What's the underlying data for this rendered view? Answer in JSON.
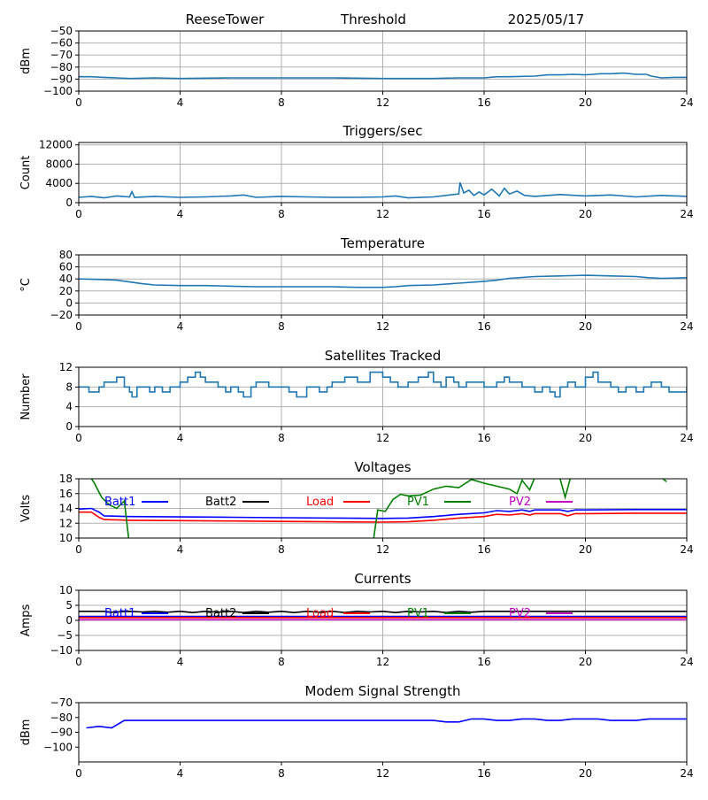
{
  "header": {
    "station": "ReeseTower",
    "label": "Threshold",
    "date": "2025/05/17"
  },
  "colors": {
    "series_default": "#1f77b4",
    "grid": "#b0b0b0"
  },
  "chart_data": [
    {
      "id": "threshold",
      "type": "line",
      "title": "",
      "xlabel": "",
      "ylabel": "dBm",
      "xlim": [
        0,
        24
      ],
      "ylim": [
        -100,
        -50
      ],
      "xticks": [
        0,
        4,
        8,
        12,
        16,
        20,
        24
      ],
      "yticks": [
        -100,
        -90,
        -80,
        -70,
        -60,
        -50
      ],
      "grid": true,
      "series": [
        {
          "color": "#1f77b4",
          "x": [
            0,
            0.5,
            1,
            1.5,
            2,
            3,
            4,
            6,
            8,
            10,
            12,
            14,
            15,
            16,
            16.5,
            17,
            18,
            18.5,
            19,
            19.5,
            20,
            20.3,
            20.6,
            21,
            21.5,
            22,
            22.4,
            22.6,
            23,
            23.5,
            24
          ],
          "y": [
            -88,
            -88,
            -88.5,
            -89,
            -89.5,
            -89,
            -89.5,
            -89,
            -89,
            -89,
            -89.5,
            -89.5,
            -89,
            -89,
            -88,
            -88,
            -87.5,
            -86.5,
            -86.5,
            -86,
            -86.5,
            -86,
            -85.5,
            -85.5,
            -85,
            -86,
            -86,
            -87.5,
            -89,
            -88.5,
            -88.5
          ]
        }
      ]
    },
    {
      "id": "triggers",
      "type": "line",
      "title": "Triggers/sec",
      "xlabel": "",
      "ylabel": "Count",
      "xlim": [
        0,
        24
      ],
      "ylim": [
        0,
        12500
      ],
      "xticks": [
        0,
        4,
        8,
        12,
        16,
        20,
        24
      ],
      "yticks": [
        0,
        4000,
        8000,
        12000
      ],
      "grid": true,
      "series": [
        {
          "color": "#1f77b4",
          "x": [
            0,
            0.5,
            1,
            1.5,
            2,
            2.1,
            2.2,
            3,
            4,
            5,
            6,
            6.5,
            7,
            8,
            9,
            10,
            11,
            12,
            12.5,
            13,
            14,
            14.5,
            15,
            15.05,
            15.2,
            15.4,
            15.6,
            15.8,
            16,
            16.3,
            16.6,
            16.8,
            17,
            17.3,
            17.6,
            18,
            19,
            20,
            21,
            22,
            23,
            24
          ],
          "y": [
            1100,
            1300,
            1000,
            1400,
            1200,
            2300,
            1100,
            1300,
            1100,
            1200,
            1400,
            1600,
            1100,
            1300,
            1200,
            1100,
            1100,
            1200,
            1400,
            1000,
            1200,
            1500,
            1800,
            4200,
            2000,
            2600,
            1500,
            2200,
            1600,
            2800,
            1400,
            3000,
            1800,
            2400,
            1500,
            1300,
            1700,
            1400,
            1600,
            1200,
            1500,
            1300
          ]
        }
      ]
    },
    {
      "id": "temperature",
      "type": "line",
      "title": "Temperature",
      "xlabel": "",
      "ylabel": "°C",
      "xlim": [
        0,
        24
      ],
      "ylim": [
        -20,
        80
      ],
      "xticks": [
        0,
        4,
        8,
        12,
        16,
        20,
        24
      ],
      "yticks": [
        -20,
        0,
        20,
        40,
        60,
        80
      ],
      "grid": true,
      "series": [
        {
          "color": "#1f77b4",
          "x": [
            0,
            1,
            1.5,
            2,
            2.5,
            3,
            4,
            5,
            6,
            7,
            8,
            9,
            10,
            11,
            12,
            12.5,
            13,
            14,
            15,
            16,
            16.5,
            17,
            18,
            19,
            20,
            21,
            22,
            22.5,
            23,
            24
          ],
          "y": [
            40,
            39,
            38,
            35,
            32,
            30,
            29,
            29,
            28,
            27,
            27,
            27,
            27,
            26,
            26,
            27,
            29,
            30,
            33,
            36,
            38,
            41,
            44,
            45,
            46,
            45,
            44,
            42,
            41,
            42
          ]
        }
      ]
    },
    {
      "id": "satellites",
      "type": "line",
      "title": "Satellites Tracked",
      "xlabel": "",
      "ylabel": "Number",
      "xlim": [
        0,
        24
      ],
      "ylim": [
        0,
        12
      ],
      "xticks": [
        0,
        4,
        8,
        12,
        16,
        20,
        24
      ],
      "yticks": [
        0,
        4,
        8,
        12
      ],
      "grid": true,
      "series": [
        {
          "color": "#1f77b4",
          "step": true,
          "x": [
            0,
            0.4,
            0.8,
            1,
            1.5,
            1.8,
            2,
            2.1,
            2.3,
            2.8,
            3,
            3.3,
            3.6,
            4,
            4.3,
            4.6,
            4.8,
            5,
            5.5,
            5.8,
            6,
            6.3,
            6.5,
            6.8,
            7,
            7.5,
            8,
            8.3,
            8.6,
            9,
            9.5,
            9.8,
            10,
            10.5,
            11,
            11.5,
            12,
            12.3,
            12.6,
            13,
            13.4,
            13.8,
            14,
            14.3,
            14.5,
            14.8,
            15,
            15.3,
            15.6,
            16,
            16.5,
            16.8,
            17,
            17.5,
            18,
            18.3,
            18.6,
            18.8,
            19,
            19.3,
            19.6,
            20,
            20.3,
            20.5,
            21,
            21.3,
            21.6,
            22,
            22.3,
            22.6,
            23,
            23.3,
            23.6,
            24
          ],
          "y": [
            8,
            7,
            8,
            9,
            10,
            8,
            7,
            6,
            8,
            7,
            8,
            7,
            8,
            9,
            10,
            11,
            10,
            9,
            8,
            7,
            8,
            7,
            6,
            8,
            9,
            8,
            8,
            7,
            6,
            8,
            7,
            8,
            9,
            10,
            9,
            11,
            10,
            9,
            8,
            9,
            10,
            11,
            9,
            8,
            10,
            9,
            8,
            9,
            9,
            8,
            9,
            10,
            9,
            8,
            7,
            8,
            7,
            6,
            8,
            9,
            8,
            10,
            11,
            9,
            8,
            7,
            8,
            7,
            8,
            9,
            8,
            7,
            7,
            8
          ]
        }
      ]
    },
    {
      "id": "voltages",
      "type": "line",
      "title": "Voltages",
      "xlabel": "",
      "ylabel": "Volts",
      "xlim": [
        0,
        24
      ],
      "ylim": [
        10,
        18
      ],
      "xticks": [
        0,
        4,
        8,
        12,
        16,
        20,
        24
      ],
      "yticks": [
        10,
        12,
        14,
        16,
        18
      ],
      "grid": true,
      "legend": "top",
      "series": [
        {
          "name": "Batt1",
          "color": "#0000ff",
          "x": [
            0,
            0.5,
            0.8,
            1,
            2,
            4,
            6,
            8,
            10,
            12,
            13,
            14,
            15,
            16,
            16.5,
            17,
            17.5,
            17.8,
            18,
            19,
            19.3,
            19.6,
            20,
            22,
            24
          ],
          "y": [
            13.9,
            14,
            13.5,
            13,
            12.9,
            12.85,
            12.8,
            12.75,
            12.7,
            12.65,
            12.7,
            12.9,
            13.2,
            13.4,
            13.7,
            13.6,
            13.8,
            13.6,
            13.8,
            13.8,
            13.6,
            13.8,
            13.8,
            13.85,
            13.85
          ]
        },
        {
          "name": "Batt2",
          "color": "#000000",
          "x": [],
          "y": []
        },
        {
          "name": "Load",
          "color": "#ff0000",
          "x": [
            0,
            0.5,
            0.8,
            1,
            2,
            4,
            6,
            8,
            10,
            12,
            13,
            14,
            15,
            16,
            16.5,
            17,
            17.5,
            17.8,
            18,
            19,
            19.3,
            19.6,
            20,
            22,
            24
          ],
          "y": [
            13.5,
            13.5,
            12.8,
            12.5,
            12.4,
            12.35,
            12.3,
            12.25,
            12.2,
            12.15,
            12.2,
            12.4,
            12.7,
            12.9,
            13.2,
            13.1,
            13.3,
            13.1,
            13.3,
            13.3,
            13.0,
            13.3,
            13.3,
            13.35,
            13.35
          ]
        },
        {
          "name": "PV1",
          "color": "#008000",
          "x": [
            0,
            0.3,
            0.6,
            0.9,
            1.2,
            1.5,
            1.8,
            1.9,
            2.0,
            11.6,
            11.8,
            12.1,
            12.4,
            12.7,
            13,
            13.5,
            14,
            14.5,
            15,
            15.5,
            16,
            16.5,
            17,
            17.3,
            17.5,
            17.8,
            18,
            18.2,
            18.5,
            18.8,
            19.0,
            19.2,
            19.4,
            19.6,
            22.7,
            23.0,
            23.2
          ],
          "y": [
            21,
            19,
            17.5,
            15.5,
            14.5,
            14,
            15,
            12,
            9,
            9,
            13.8,
            13.6,
            15.2,
            15.9,
            15.7,
            15.8,
            16.6,
            17,
            16.8,
            17.9,
            17.4,
            17,
            16.6,
            16,
            17.8,
            16.5,
            18.2,
            19.5,
            20,
            19,
            18,
            15.5,
            18,
            21,
            21,
            18.2,
            17.6
          ]
        },
        {
          "name": "PV2",
          "color": "#bf00bf",
          "x": [],
          "y": []
        }
      ]
    },
    {
      "id": "currents",
      "type": "line",
      "title": "Currents",
      "xlabel": "",
      "ylabel": "Amps",
      "xlim": [
        0,
        24
      ],
      "ylim": [
        -10,
        10
      ],
      "xticks": [
        0,
        4,
        8,
        12,
        16,
        20,
        24
      ],
      "yticks": [
        -10,
        -5,
        0,
        5,
        10
      ],
      "grid": true,
      "legend": "top",
      "series": [
        {
          "name": "Batt1",
          "color": "#0000ff",
          "x": [
            0,
            24
          ],
          "y": [
            1.3,
            1.3
          ]
        },
        {
          "name": "Batt2",
          "color": "#000000",
          "x": [
            0,
            1,
            1.3,
            2,
            2.5,
            3,
            3.5,
            4,
            4.5,
            5,
            5.5,
            6,
            6.5,
            7,
            7.5,
            8,
            8.5,
            9,
            9.5,
            10,
            10.5,
            11,
            11.5,
            12,
            12.5,
            13,
            13.5,
            14,
            14.5,
            15,
            15.5,
            16,
            24
          ],
          "y": [
            3,
            3,
            2.7,
            3,
            2.8,
            3,
            2.7,
            3,
            2.6,
            3,
            2.7,
            3,
            2.6,
            3,
            2.7,
            3,
            2.6,
            3,
            2.7,
            3,
            2.6,
            3,
            2.8,
            3,
            2.6,
            3,
            2.8,
            3,
            2.6,
            3,
            2.7,
            3,
            3
          ]
        },
        {
          "name": "Load",
          "color": "#ff0000",
          "x": [
            0,
            24
          ],
          "y": [
            0.9,
            0.9
          ]
        },
        {
          "name": "PV1",
          "color": "#008000",
          "x": [],
          "y": []
        },
        {
          "name": "PV2",
          "color": "#bf00bf",
          "x": [
            0,
            24
          ],
          "y": [
            0.2,
            0.2
          ]
        }
      ]
    },
    {
      "id": "modem",
      "type": "line",
      "title": "Modem Signal Strength",
      "xlabel": "",
      "ylabel": "dBm",
      "xlim": [
        0,
        24
      ],
      "ylim": [
        -110,
        -70
      ],
      "xticks": [
        0,
        4,
        8,
        12,
        16,
        20,
        24
      ],
      "yticks": [
        -100,
        -90,
        -80,
        -70
      ],
      "grid": false,
      "series": [
        {
          "color": "#0000ff",
          "x": [
            0.3,
            0.8,
            1.3,
            1.8,
            2.3,
            14,
            14.5,
            15,
            15.5,
            16,
            16.5,
            17,
            17.5,
            18,
            18.5,
            19,
            19.5,
            20,
            20.5,
            21,
            21.5,
            22,
            22.5,
            23,
            24
          ],
          "y": [
            -87,
            -86,
            -87,
            -82,
            -82,
            -82,
            -83,
            -83,
            -81,
            -81,
            -82,
            -82,
            -81,
            -81,
            -82,
            -82,
            -81,
            -81,
            -81,
            -82,
            -82,
            -82,
            -81,
            -81,
            -81
          ]
        }
      ]
    }
  ]
}
